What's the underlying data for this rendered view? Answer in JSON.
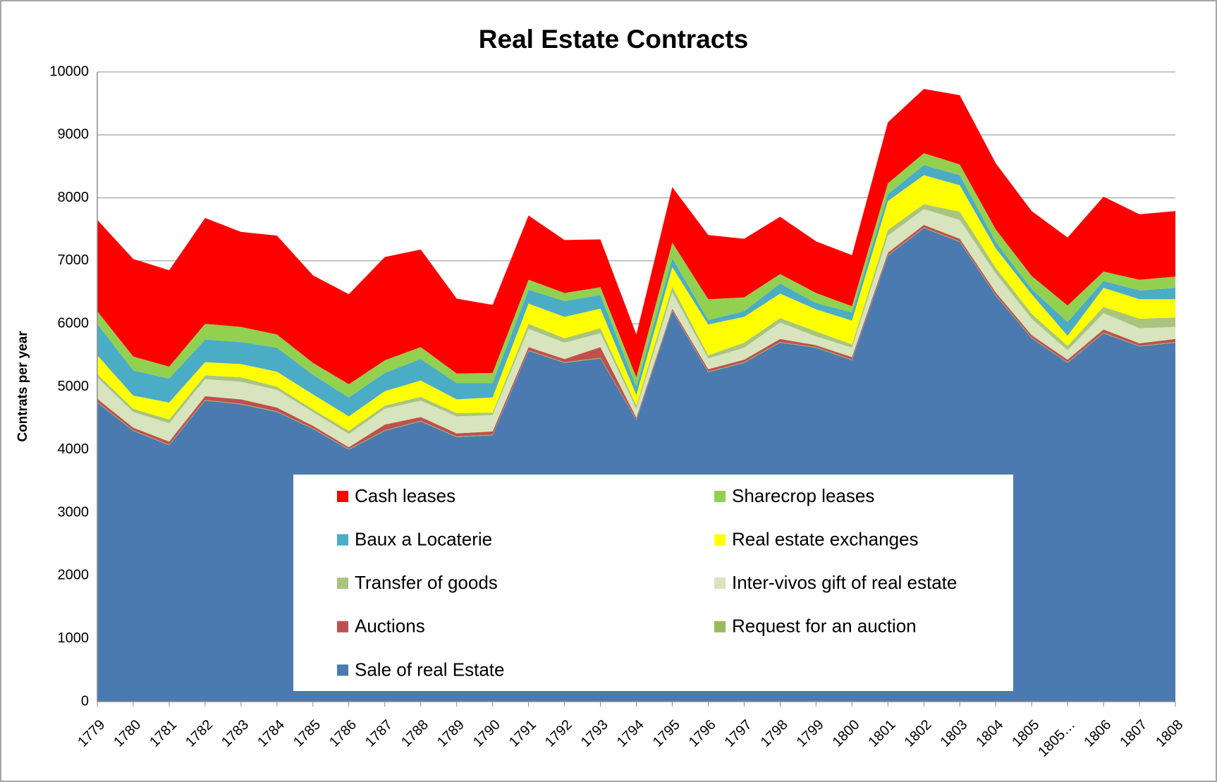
{
  "chart_data": {
    "type": "stacked_area",
    "title": "Real Estate Contracts",
    "y_label": "Contrats per year",
    "categories": [
      "1779",
      "1780",
      "1781",
      "1782",
      "1783",
      "1784",
      "1785",
      "1786",
      "1787",
      "1788",
      "1789",
      "1790",
      "1791",
      "1792",
      "1793",
      "1794",
      "1795",
      "1796",
      "1797",
      "1798",
      "1799",
      "1800",
      "1801",
      "1802",
      "1803",
      "1804",
      "1805",
      "1805…",
      "1806",
      "1807",
      "1808"
    ],
    "series": [
      {
        "name": "Sale of real Estate",
        "color": "#4a7ab0",
        "values": [
          4750,
          4300,
          4070,
          4780,
          4720,
          4600,
          4330,
          4000,
          4300,
          4450,
          4200,
          4230,
          5570,
          5380,
          5450,
          4470,
          6200,
          5230,
          5380,
          5700,
          5620,
          5420,
          7080,
          7520,
          7300,
          6450,
          5770,
          5380,
          5850,
          5640,
          5700
        ]
      },
      {
        "name": "Request for an auction",
        "color": "#9bbb59",
        "values": [
          10,
          10,
          10,
          10,
          10,
          10,
          10,
          10,
          10,
          10,
          10,
          10,
          10,
          10,
          10,
          10,
          10,
          10,
          10,
          10,
          10,
          10,
          10,
          10,
          10,
          10,
          10,
          10,
          10,
          10,
          10
        ]
      },
      {
        "name": "Auctions",
        "color": "#c0504d",
        "values": [
          50,
          40,
          50,
          60,
          70,
          60,
          40,
          30,
          90,
          60,
          50,
          50,
          50,
          50,
          170,
          30,
          30,
          40,
          40,
          50,
          30,
          40,
          40,
          40,
          40,
          40,
          40,
          40,
          50,
          40,
          50
        ]
      },
      {
        "name": "Inter-vivos gift of real estate",
        "color": "#d7e4bd",
        "values": [
          340,
          250,
          290,
          270,
          280,
          280,
          220,
          210,
          250,
          260,
          270,
          260,
          290,
          260,
          220,
          140,
          260,
          170,
          190,
          260,
          140,
          150,
          270,
          250,
          300,
          300,
          260,
          150,
          260,
          240,
          190
        ]
      },
      {
        "name": "Transfer of goods",
        "color": "#a9c47f",
        "values": [
          50,
          50,
          60,
          60,
          70,
          50,
          40,
          50,
          50,
          60,
          50,
          40,
          80,
          70,
          80,
          50,
          90,
          50,
          80,
          70,
          80,
          50,
          90,
          80,
          130,
          90,
          80,
          70,
          100,
          150,
          150
        ]
      },
      {
        "name": "Real estate exchanges",
        "color": "#ffff00",
        "values": [
          300,
          210,
          270,
          210,
          210,
          240,
          240,
          230,
          230,
          260,
          220,
          240,
          320,
          340,
          310,
          170,
          310,
          490,
          410,
          390,
          350,
          380,
          460,
          460,
          420,
          310,
          310,
          160,
          300,
          310,
          290
        ]
      },
      {
        "name": "Baux a Locaterie",
        "color": "#4bacc6",
        "values": [
          500,
          400,
          380,
          360,
          350,
          380,
          310,
          300,
          290,
          340,
          260,
          230,
          220,
          250,
          220,
          130,
          140,
          70,
          90,
          160,
          100,
          130,
          110,
          160,
          160,
          100,
          80,
          220,
          110,
          140,
          180
        ]
      },
      {
        "name": "Sharecrop leases",
        "color": "#92d050",
        "values": [
          200,
          220,
          190,
          250,
          240,
          210,
          190,
          210,
          200,
          190,
          150,
          160,
          160,
          130,
          120,
          150,
          250,
          330,
          220,
          150,
          160,
          100,
          170,
          190,
          170,
          200,
          210,
          260,
          150,
          170,
          180
        ]
      },
      {
        "name": "Cash leases",
        "color": "#ff0000",
        "values": [
          1450,
          1550,
          1530,
          1680,
          1510,
          1570,
          1390,
          1430,
          1640,
          1550,
          1190,
          1080,
          1020,
          840,
          760,
          680,
          880,
          1020,
          930,
          910,
          820,
          810,
          970,
          1020,
          1100,
          1050,
          1030,
          1080,
          1190,
          1040,
          1040
        ]
      }
    ],
    "ylim": [
      0,
      10000
    ],
    "yticks": [
      0,
      1000,
      2000,
      3000,
      4000,
      5000,
      6000,
      7000,
      8000,
      9000,
      10000
    ],
    "grid": true
  }
}
